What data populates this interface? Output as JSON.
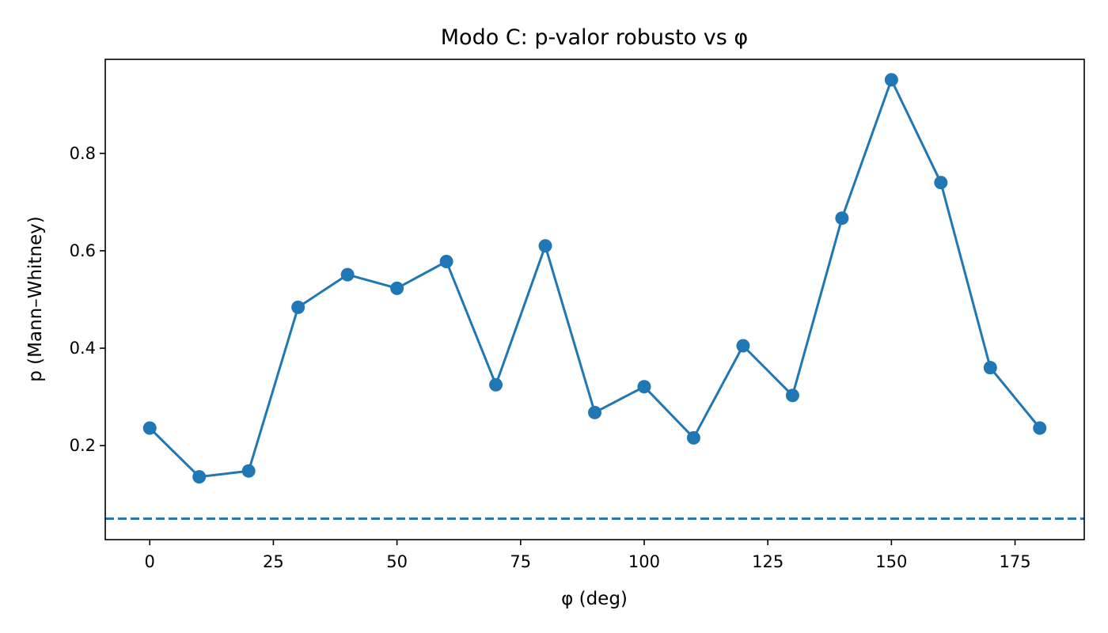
{
  "chart_data": {
    "type": "line",
    "title": "Modo C: p-valor robusto vs φ",
    "xlabel": "φ (deg)",
    "ylabel": "p (Mann–Whitney)",
    "xlim": [
      -9,
      189
    ],
    "ylim": [
      0.007,
      0.993
    ],
    "xticks": [
      0,
      25,
      50,
      75,
      100,
      125,
      150,
      175
    ],
    "yticks": [
      0.2,
      0.4,
      0.6,
      0.8
    ],
    "xtick_labels": [
      "0",
      "25",
      "50",
      "75",
      "100",
      "125",
      "150",
      "175"
    ],
    "ytick_labels": [
      "0.2",
      "0.4",
      "0.6",
      "0.8"
    ],
    "series": [
      {
        "name": "p-valor",
        "color": "#1f77b4",
        "marker": "circle",
        "x": [
          0,
          10,
          20,
          30,
          40,
          50,
          60,
          70,
          80,
          90,
          100,
          110,
          120,
          130,
          140,
          150,
          160,
          170,
          180
        ],
        "values": [
          0.236,
          0.136,
          0.148,
          0.484,
          0.551,
          0.523,
          0.578,
          0.325,
          0.61,
          0.268,
          0.321,
          0.216,
          0.405,
          0.303,
          0.667,
          0.951,
          0.74,
          0.36,
          0.236
        ]
      }
    ],
    "reference_lines": [
      {
        "type": "horizontal",
        "y": 0.05,
        "style": "dashed",
        "color": "#1f77b4"
      }
    ],
    "grid": false,
    "legend": "none"
  }
}
